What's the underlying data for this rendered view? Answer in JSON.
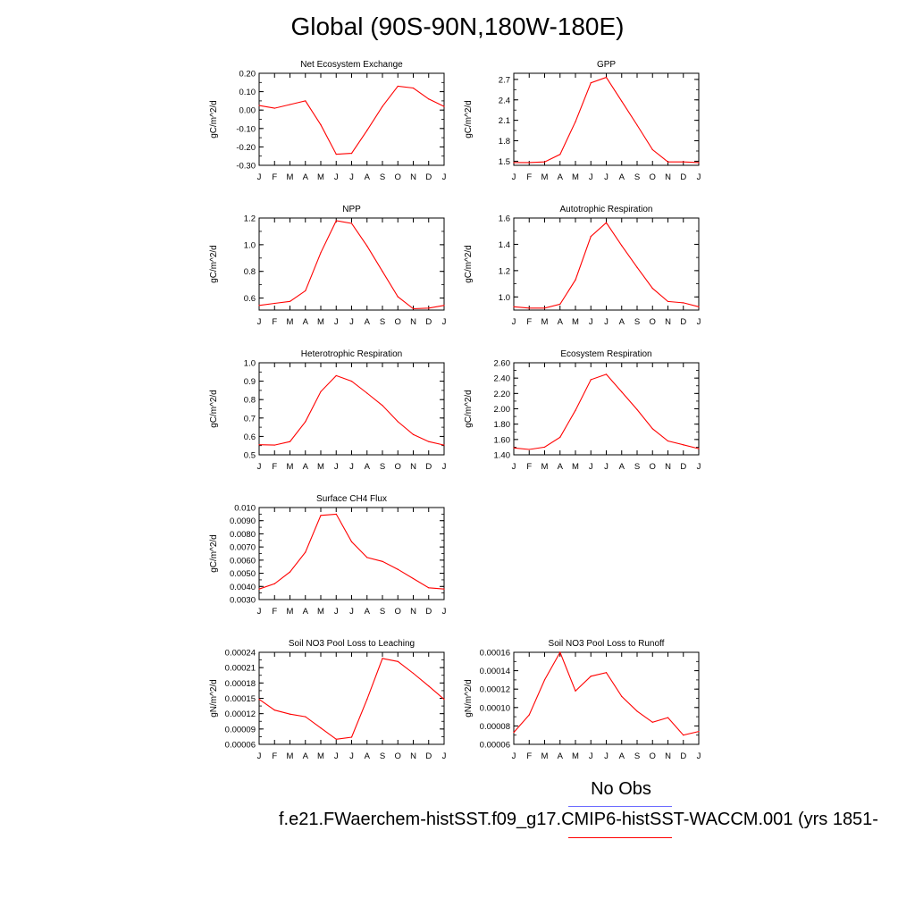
{
  "page": {
    "title": "Global (90S-90N,180W-180E)",
    "legend_obs_label": "No Obs",
    "case_label": "f.e21.FWaerchem-histSST.f09_g17.CMIP6-histSST-WACCM.001 (yrs 1851-",
    "line_color": "#ff0000",
    "obs_color": "#6b6bff"
  },
  "chart_data": [
    {
      "type": "line",
      "title": "Net Ecosystem Exchange",
      "ylabel": "gC/m^2/d",
      "categories": [
        "J",
        "F",
        "M",
        "A",
        "M",
        "J",
        "J",
        "A",
        "S",
        "O",
        "N",
        "D",
        "J"
      ],
      "yticks": [
        "0.20",
        "0.10",
        "0.00",
        "-0.10",
        "-0.20",
        "-0.30"
      ],
      "ylim": [
        -0.3,
        0.2
      ],
      "series": [
        {
          "values": [
            0.025,
            0.01,
            0.03,
            0.05,
            -0.08,
            -0.24,
            -0.235,
            -0.11,
            0.02,
            0.13,
            0.12,
            0.06,
            0.02
          ]
        }
      ]
    },
    {
      "type": "line",
      "title": "GPP",
      "ylabel": "gC/m^2/d",
      "categories": [
        "J",
        "F",
        "M",
        "A",
        "M",
        "J",
        "J",
        "A",
        "S",
        "O",
        "N",
        "D",
        "J"
      ],
      "yticks": [
        "2.7",
        "2.4",
        "2.1",
        "1.8",
        "1.5"
      ],
      "ylim": [
        1.44,
        2.79
      ],
      "series": [
        {
          "values": [
            1.48,
            1.48,
            1.49,
            1.6,
            2.08,
            2.65,
            2.73,
            2.38,
            2.03,
            1.67,
            1.49,
            1.49,
            1.48
          ]
        }
      ]
    },
    {
      "type": "line",
      "title": "NPP",
      "ylabel": "gC/m^2/d",
      "categories": [
        "J",
        "F",
        "M",
        "A",
        "M",
        "J",
        "J",
        "A",
        "S",
        "O",
        "N",
        "D",
        "J"
      ],
      "yticks": [
        "1.2",
        "1.0",
        "0.8",
        "0.6"
      ],
      "ylim": [
        0.51,
        1.2
      ],
      "series": [
        {
          "values": [
            0.545,
            0.56,
            0.575,
            0.655,
            0.94,
            1.18,
            1.16,
            0.99,
            0.8,
            0.61,
            0.52,
            0.525,
            0.545
          ]
        }
      ]
    },
    {
      "type": "line",
      "title": "Autotrophic Respiration",
      "ylabel": "gC/m^2/d",
      "categories": [
        "J",
        "F",
        "M",
        "A",
        "M",
        "J",
        "J",
        "A",
        "S",
        "O",
        "N",
        "D",
        "J"
      ],
      "yticks": [
        "1.6",
        "1.4",
        "1.2",
        "1.0"
      ],
      "ylim": [
        0.9,
        1.6
      ],
      "series": [
        {
          "values": [
            0.925,
            0.915,
            0.915,
            0.945,
            1.13,
            1.46,
            1.565,
            1.39,
            1.225,
            1.065,
            0.965,
            0.955,
            0.925
          ]
        }
      ]
    },
    {
      "type": "line",
      "title": "Heterotrophic Respiration",
      "ylabel": "gC/m^2/d",
      "categories": [
        "J",
        "F",
        "M",
        "A",
        "M",
        "J",
        "J",
        "A",
        "S",
        "O",
        "N",
        "D",
        "J"
      ],
      "yticks": [
        "1.0",
        "0.9",
        "0.8",
        "0.7",
        "0.6",
        "0.5"
      ],
      "ylim": [
        0.5,
        1.0
      ],
      "series": [
        {
          "values": [
            0.555,
            0.553,
            0.572,
            0.68,
            0.843,
            0.93,
            0.9,
            0.835,
            0.768,
            0.68,
            0.61,
            0.572,
            0.553
          ]
        }
      ]
    },
    {
      "type": "line",
      "title": "Ecosystem Respiration",
      "ylabel": "gC/m^2/d",
      "categories": [
        "J",
        "F",
        "M",
        "A",
        "M",
        "J",
        "J",
        "A",
        "S",
        "O",
        "N",
        "D",
        "J"
      ],
      "yticks": [
        "2.60",
        "2.40",
        "2.20",
        "2.00",
        "1.80",
        "1.60",
        "1.40"
      ],
      "ylim": [
        1.4,
        2.6
      ],
      "series": [
        {
          "values": [
            1.49,
            1.47,
            1.5,
            1.63,
            1.98,
            2.38,
            2.45,
            2.22,
            1.99,
            1.74,
            1.58,
            1.53,
            1.48
          ]
        }
      ]
    },
    {
      "type": "line",
      "title": "Surface CH4 Flux",
      "ylabel": "gC/m^2/d",
      "categories": [
        "J",
        "F",
        "M",
        "A",
        "M",
        "J",
        "J",
        "A",
        "S",
        "O",
        "N",
        "D",
        "J"
      ],
      "yticks": [
        "0.010",
        "0.0090",
        "0.0080",
        "0.0070",
        "0.0060",
        "0.0050",
        "0.0040",
        "0.0030"
      ],
      "ylim": [
        0.003,
        0.01
      ],
      "series": [
        {
          "values": [
            0.0038,
            0.0042,
            0.0051,
            0.0066,
            0.0094,
            0.0095,
            0.0074,
            0.0062,
            0.0059,
            0.0053,
            0.0046,
            0.0039,
            0.0038
          ]
        }
      ]
    },
    {
      "type": "line",
      "title": "Soil NO3 Pool Loss to Leaching",
      "ylabel": "gN/m^2/d",
      "categories": [
        "J",
        "F",
        "M",
        "A",
        "M",
        "J",
        "J",
        "A",
        "S",
        "O",
        "N",
        "D",
        "J"
      ],
      "yticks": [
        "0.00024",
        "0.00021",
        "0.00018",
        "0.00015",
        "0.00012",
        "0.00009",
        "0.00006"
      ],
      "ylim": [
        6e-05,
        0.00024
      ],
      "series": [
        {
          "values": [
            0.000148,
            0.000127,
            0.000119,
            0.000114,
            9.2e-05,
            7e-05,
            7.4e-05,
            0.000148,
            0.000228,
            0.000222,
            0.000199,
            0.000174,
            0.000148
          ]
        }
      ]
    },
    {
      "type": "line",
      "title": "Soil NO3 Pool Loss to Runoff",
      "ylabel": "gN/m^2/d",
      "categories": [
        "J",
        "F",
        "M",
        "A",
        "M",
        "J",
        "J",
        "A",
        "S",
        "O",
        "N",
        "D",
        "J"
      ],
      "yticks": [
        "0.00016",
        "0.00014",
        "0.00012",
        "0.00010",
        "0.00008",
        "0.00006"
      ],
      "ylim": [
        6e-05,
        0.00016
      ],
      "series": [
        {
          "values": [
            7.3e-05,
            9.2e-05,
            0.00013,
            0.00016,
            0.000118,
            0.000134,
            0.000138,
            0.000112,
            9.6e-05,
            8.4e-05,
            8.9e-05,
            7e-05,
            7.4e-05
          ]
        }
      ]
    }
  ]
}
